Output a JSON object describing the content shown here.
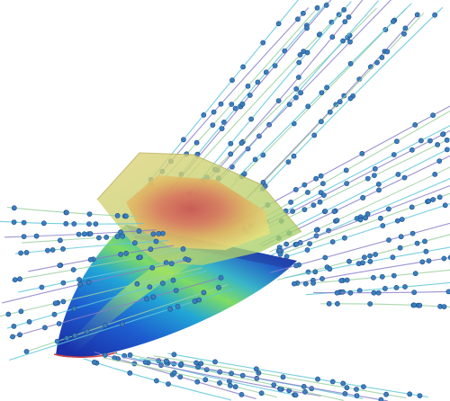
{
  "scene": {
    "subject": "hull",
    "superstructure": "cabin",
    "flow": "streamlines"
  },
  "colors": {
    "background": "#ffffff",
    "hull_low": "#1f3fbf",
    "hull_mid": "#1fb3d9",
    "hull_high": "#8fe35a",
    "hull_peak": "#f0e05a",
    "cabin_low": "#e8e27a",
    "cabin_high": "#d0484a",
    "streamline_a": "#5fc7d9",
    "streamline_b": "#8a7fc8",
    "streamline_c": "#9cd0a0",
    "particle": "#3b7fbf",
    "waterline": "#d04040"
  }
}
